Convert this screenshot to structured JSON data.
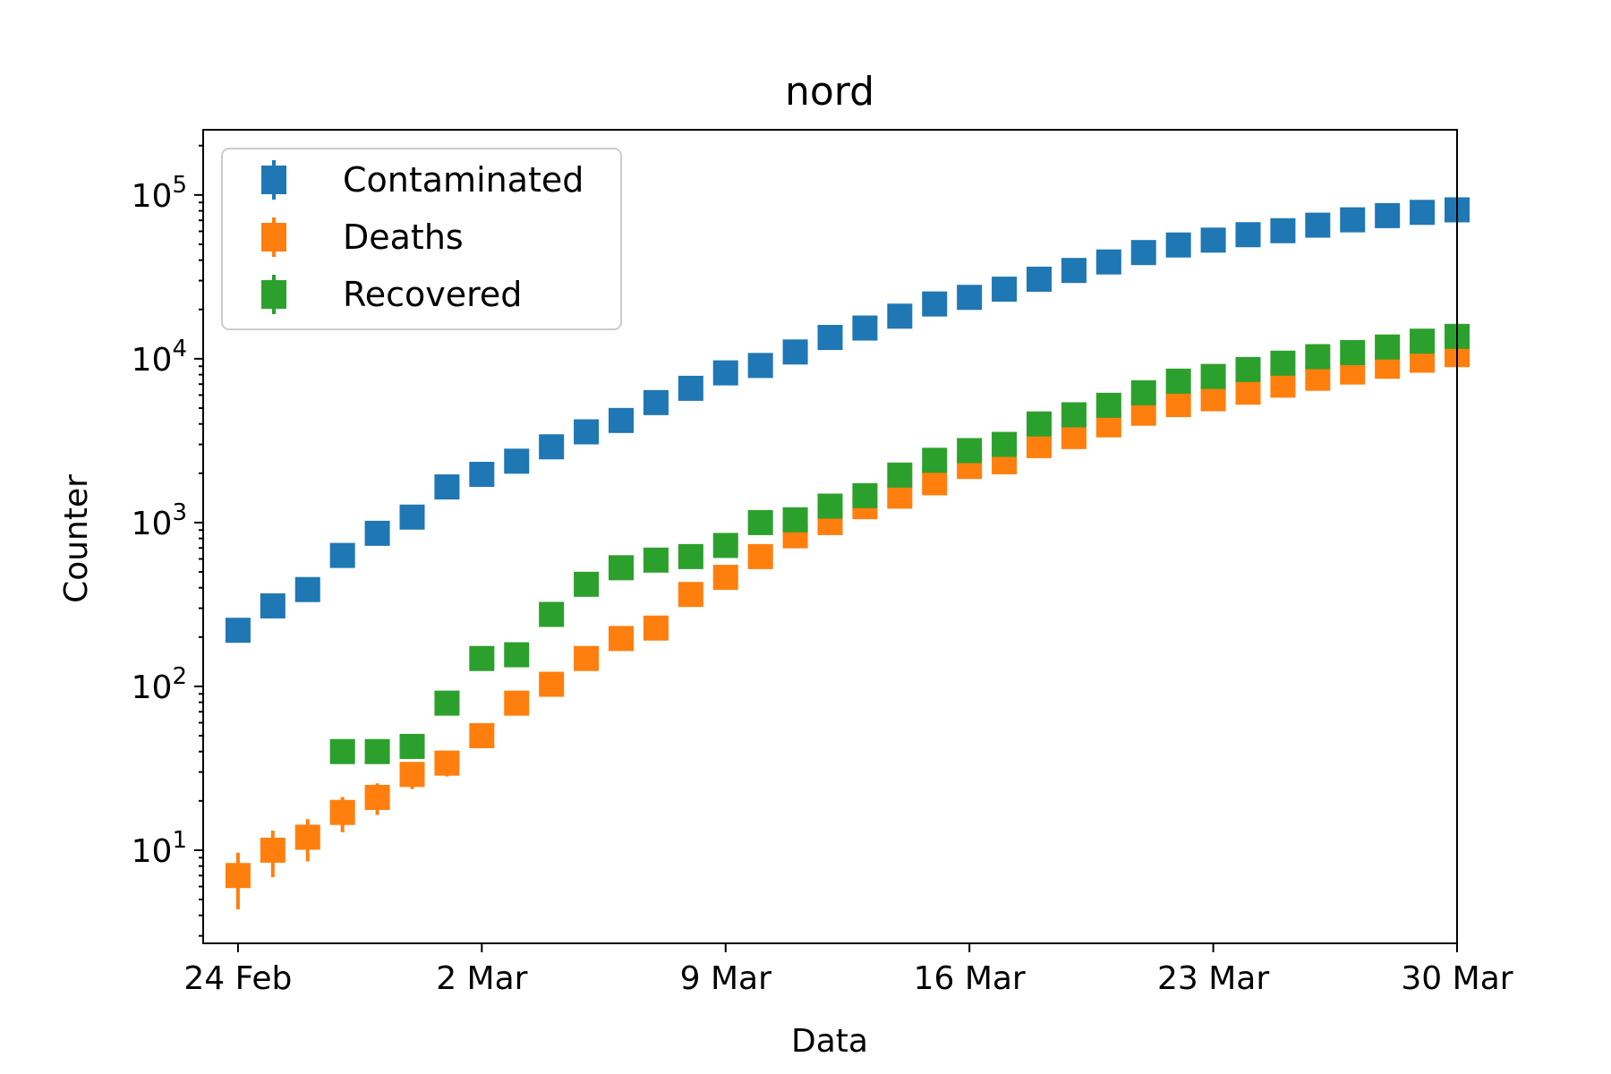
{
  "chart_data": {
    "type": "scatter",
    "title": "nord",
    "xlabel": "Data",
    "ylabel": "Counter",
    "yscale": "log",
    "ylim": [
      2.7,
      250000
    ],
    "xlim": [
      "2020-02-23",
      "2020-03-30"
    ],
    "grid": false,
    "legend_position": "top-left",
    "x_ticks": [
      {
        "date": "2020-02-24",
        "label": "24 Feb"
      },
      {
        "date": "2020-03-02",
        "label": "2 Mar"
      },
      {
        "date": "2020-03-09",
        "label": "9 Mar"
      },
      {
        "date": "2020-03-16",
        "label": "16 Mar"
      },
      {
        "date": "2020-03-23",
        "label": "23 Mar"
      },
      {
        "date": "2020-03-30",
        "label": "30 Mar"
      }
    ],
    "y_ticks": [
      {
        "value": 10,
        "base": "10",
        "exp": "1"
      },
      {
        "value": 100,
        "base": "10",
        "exp": "2"
      },
      {
        "value": 1000,
        "base": "10",
        "exp": "3"
      },
      {
        "value": 10000,
        "base": "10",
        "exp": "4"
      },
      {
        "value": 100000,
        "base": "10",
        "exp": "5"
      }
    ],
    "x": [
      "2020-02-24",
      "2020-02-25",
      "2020-02-26",
      "2020-02-27",
      "2020-02-28",
      "2020-02-29",
      "2020-03-01",
      "2020-03-02",
      "2020-03-03",
      "2020-03-04",
      "2020-03-05",
      "2020-03-06",
      "2020-03-07",
      "2020-03-08",
      "2020-03-09",
      "2020-03-10",
      "2020-03-11",
      "2020-03-12",
      "2020-03-13",
      "2020-03-14",
      "2020-03-15",
      "2020-03-16",
      "2020-03-17",
      "2020-03-18",
      "2020-03-19",
      "2020-03-20",
      "2020-03-21",
      "2020-03-22",
      "2020-03-23",
      "2020-03-24",
      "2020-03-25",
      "2020-03-26",
      "2020-03-27",
      "2020-03-28",
      "2020-03-29",
      "2020-03-30"
    ],
    "series": [
      {
        "name": "Contaminated",
        "color": "#1f77b4",
        "values": [
          220,
          310,
          390,
          630,
          860,
          1080,
          1650,
          1970,
          2370,
          2900,
          3580,
          4200,
          5400,
          6600,
          8200,
          9100,
          11000,
          13500,
          15400,
          18200,
          21600,
          23700,
          26600,
          30600,
          34600,
          39000,
          44500,
          49500,
          53000,
          57200,
          60500,
          65400,
          70500,
          74800,
          78300,
          81100
        ]
      },
      {
        "name": "Deaths",
        "color": "#ff7f0e",
        "values": [
          7,
          10,
          12,
          17,
          21,
          29,
          34,
          50,
          79,
          103,
          148,
          196,
          227,
          364,
          463,
          620,
          830,
          1000,
          1250,
          1450,
          1750,
          2200,
          2350,
          2950,
          3350,
          3950,
          4650,
          5250,
          5700,
          6250,
          6900,
          7600,
          8300,
          9000,
          9800,
          10600
        ]
      },
      {
        "name": "Recovered",
        "color": "#2ca02c",
        "values": [
          null,
          null,
          null,
          40,
          40,
          43,
          79,
          148,
          156,
          275,
          420,
          530,
          590,
          620,
          725,
          1000,
          1040,
          1260,
          1460,
          1950,
          2400,
          2750,
          3000,
          4000,
          4550,
          5200,
          6200,
          7300,
          7800,
          8600,
          9400,
          10300,
          10900,
          11800,
          12800,
          13700
        ]
      }
    ]
  }
}
